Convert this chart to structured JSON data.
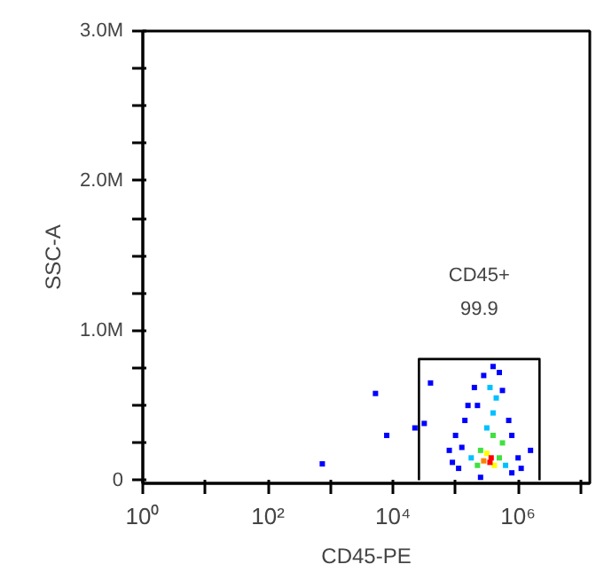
{
  "chart_data": {
    "type": "scatter",
    "xlabel": "CD45-PE",
    "ylabel": "SSC-A",
    "log": "x",
    "grid": false,
    "xlim": [
      1,
      14000000
    ],
    "ylim": [
      -20000,
      3000000
    ],
    "xticks": [
      {
        "value": 1,
        "label": "10⁰"
      },
      {
        "value": 10,
        "label": null
      },
      {
        "value": 100,
        "label": "10²"
      },
      {
        "value": 1000,
        "label": null
      },
      {
        "value": 10000,
        "label": "10⁴"
      },
      {
        "value": 100000,
        "label": null
      },
      {
        "value": 1000000,
        "label": "10⁶"
      },
      {
        "value": 10000000,
        "label": null
      }
    ],
    "yticks": [
      {
        "value": 0,
        "label": "0"
      },
      {
        "value": 250000,
        "label": null
      },
      {
        "value": 500000,
        "label": null
      },
      {
        "value": 750000,
        "label": null
      },
      {
        "value": 1000000,
        "label": "1.0M"
      },
      {
        "value": 1250000,
        "label": null
      },
      {
        "value": 1500000,
        "label": null
      },
      {
        "value": 1750000,
        "label": null
      },
      {
        "value": 2000000,
        "label": "2.0M"
      },
      {
        "value": 2250000,
        "label": null
      },
      {
        "value": 2500000,
        "label": null
      },
      {
        "value": 2750000,
        "label": null
      },
      {
        "value": 3000000,
        "label": "3.0M"
      }
    ],
    "annotations": [
      "CD45+",
      "99.9"
    ],
    "series": [
      {
        "type": "line",
        "marker": "none",
        "color": "#000000",
        "x": [
          26000,
          26000,
          2200000,
          2200000
        ],
        "values": [
          0,
          810000,
          810000,
          0
        ]
      },
      {
        "marker": "square",
        "x": [
          31600,
          22400,
          5250,
          741,
          39800,
          7940,
          1580000,
          501000,
          282000,
          158000,
          100000,
          79400,
          112000,
          794000,
          1000000,
          708000,
          200000,
          141000,
          89100,
          562000,
          398000,
          224000,
          794000,
          126000,
          251000,
          1120000,
          398000,
          447000,
          316000,
          178000,
          631000,
          355000,
          251000,
          501000,
          398000,
          224000,
          562000,
          316000,
          417000,
          282000,
          371000,
          355000
        ],
        "values": [
          380000,
          350000,
          580000,
          110000,
          650000,
          300000,
          200000,
          720000,
          700000,
          500000,
          300000,
          200000,
          80000,
          50000,
          150000,
          400000,
          620000,
          400000,
          120000,
          600000,
          760000,
          500000,
          300000,
          220000,
          20000,
          80000,
          450000,
          550000,
          350000,
          150000,
          100000,
          620000,
          200000,
          150000,
          300000,
          100000,
          250000,
          180000,
          100000,
          130000,
          150000,
          120000
        ],
        "colors": [
          "#0000ff",
          "#0000ff",
          "#0000ff",
          "#0000ff",
          "#0000ff",
          "#0000ff",
          "#0000ff",
          "#0000ff",
          "#0000ff",
          "#0000ff",
          "#0000ff",
          "#0000ff",
          "#0000ff",
          "#0000ff",
          "#0000ff",
          "#0000ff",
          "#0000ff",
          "#0000ff",
          "#0000ff",
          "#0000ff",
          "#0000ff",
          "#0000ff",
          "#0000ff",
          "#0000ff",
          "#0000ff",
          "#0000ff",
          "#00c0ff",
          "#00c0ff",
          "#00c0ff",
          "#00c0ff",
          "#00c0ff",
          "#00c0ff",
          "#40e040",
          "#40e040",
          "#40e040",
          "#40e040",
          "#40e040",
          "#ffff00",
          "#ffff00",
          "#ff8000",
          "#ff0000",
          "#ff0000"
        ]
      }
    ]
  }
}
